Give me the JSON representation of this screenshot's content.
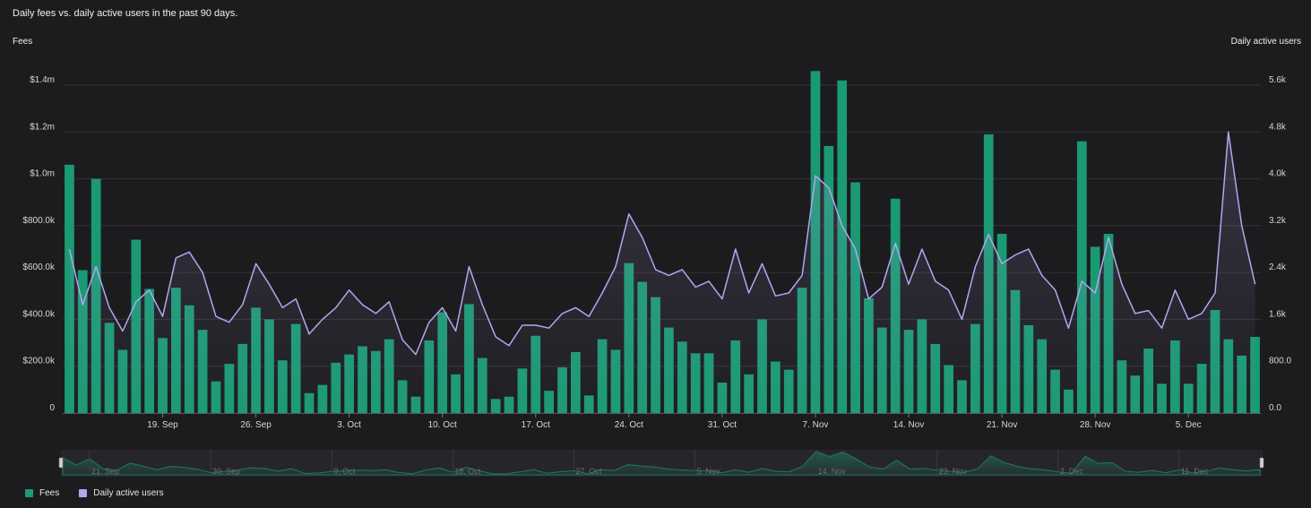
{
  "header": {
    "title": "Daily fees vs. daily active users in the past 90 days."
  },
  "colors": {
    "fees": "#1a9a73",
    "users": "#b3a6f0",
    "grid": "#333338",
    "navigator": "#1f7a5c"
  },
  "legend": [
    {
      "name": "Fees",
      "color": "#1a9a73"
    },
    {
      "name": "Daily active users",
      "color": "#b3a6f0"
    }
  ],
  "chart_data": {
    "type": "bar",
    "title": "Daily fees vs. daily active users in the past 90 days.",
    "ylabel_left": "Fees",
    "ylabel_right": "Daily active users",
    "ylim_left": [
      0,
      1400000
    ],
    "ylim_right": [
      0,
      5600
    ],
    "left_ticks": [
      {
        "value": 0,
        "label": "0"
      },
      {
        "value": 200000,
        "label": "$200.0k"
      },
      {
        "value": 400000,
        "label": "$400.0k"
      },
      {
        "value": 600000,
        "label": "$600.0k"
      },
      {
        "value": 800000,
        "label": "$800.0k"
      },
      {
        "value": 1000000,
        "label": "$1.0m"
      },
      {
        "value": 1200000,
        "label": "$1.2m"
      },
      {
        "value": 1400000,
        "label": "$1.4m"
      }
    ],
    "right_ticks": [
      {
        "value": 0,
        "label": "0.0"
      },
      {
        "value": 800,
        "label": "800.0"
      },
      {
        "value": 1600,
        "label": "1.6k"
      },
      {
        "value": 2400,
        "label": "2.4k"
      },
      {
        "value": 3200,
        "label": "3.2k"
      },
      {
        "value": 4000,
        "label": "4.0k"
      },
      {
        "value": 4800,
        "label": "4.8k"
      },
      {
        "value": 5600,
        "label": "5.6k"
      }
    ],
    "x_ticks": [
      {
        "index": 7,
        "label": "19. Sep"
      },
      {
        "index": 14,
        "label": "26. Sep"
      },
      {
        "index": 21,
        "label": "3. Oct"
      },
      {
        "index": 28,
        "label": "10. Oct"
      },
      {
        "index": 35,
        "label": "17. Oct"
      },
      {
        "index": 42,
        "label": "24. Oct"
      },
      {
        "index": 49,
        "label": "31. Oct"
      },
      {
        "index": 56,
        "label": "7. Nov"
      },
      {
        "index": 63,
        "label": "14. Nov"
      },
      {
        "index": 70,
        "label": "21. Nov"
      },
      {
        "index": 77,
        "label": "28. Nov"
      },
      {
        "index": 84,
        "label": "5. Dec"
      }
    ],
    "navigator_ticks": [
      "21. Sep",
      "30. Sep",
      "9. Oct",
      "18. Oct",
      "27. Oct",
      "5. Nov",
      "14. Nov",
      "23. Nov",
      "2. Dec",
      "11. Dec"
    ],
    "series": [
      {
        "name": "Fees",
        "type": "bar",
        "axis": "left",
        "values": [
          1060000,
          610000,
          1000000,
          385000,
          270000,
          740000,
          530000,
          320000,
          535000,
          460000,
          355000,
          135000,
          210000,
          295000,
          450000,
          400000,
          225000,
          380000,
          85000,
          120000,
          215000,
          250000,
          285000,
          265000,
          315000,
          140000,
          70000,
          310000,
          430000,
          165000,
          465000,
          235000,
          60000,
          70000,
          190000,
          330000,
          95000,
          195000,
          260000,
          75000,
          315000,
          270000,
          640000,
          560000,
          495000,
          365000,
          305000,
          255000,
          255000,
          130000,
          310000,
          165000,
          400000,
          220000,
          185000,
          535000,
          1460000,
          1140000,
          1420000,
          985000,
          490000,
          365000,
          915000,
          355000,
          400000,
          295000,
          205000,
          140000,
          380000,
          1190000,
          765000,
          525000,
          375000,
          315000,
          185000,
          100000,
          1160000,
          710000,
          765000,
          225000,
          160000,
          275000,
          125000,
          310000,
          125000,
          210000,
          440000,
          315000,
          245000,
          325000
        ]
      },
      {
        "name": "Daily active users",
        "type": "line",
        "axis": "right",
        "values": [
          2800,
          1850,
          2500,
          1800,
          1400,
          1900,
          2100,
          1650,
          2650,
          2750,
          2400,
          1650,
          1550,
          1850,
          2550,
          2200,
          1800,
          1950,
          1350,
          1600,
          1800,
          2100,
          1850,
          1700,
          1900,
          1250,
          1000,
          1550,
          1800,
          1400,
          2500,
          1850,
          1300,
          1150,
          1500,
          1500,
          1450,
          1700,
          1800,
          1650,
          2050,
          2500,
          3400,
          3000,
          2450,
          2350,
          2450,
          2150,
          2250,
          1950,
          2800,
          2050,
          2550,
          2000,
          2050,
          2350,
          4050,
          3850,
          3200,
          2800,
          1950,
          2150,
          2900,
          2200,
          2800,
          2250,
          2100,
          1600,
          2500,
          3050,
          2550,
          2700,
          2800,
          2350,
          2100,
          1450,
          2250,
          2050,
          3000,
          2200,
          1700,
          1750,
          1450,
          2100,
          1600,
          1700,
          2050,
          4800,
          3200,
          2200
        ]
      }
    ]
  }
}
